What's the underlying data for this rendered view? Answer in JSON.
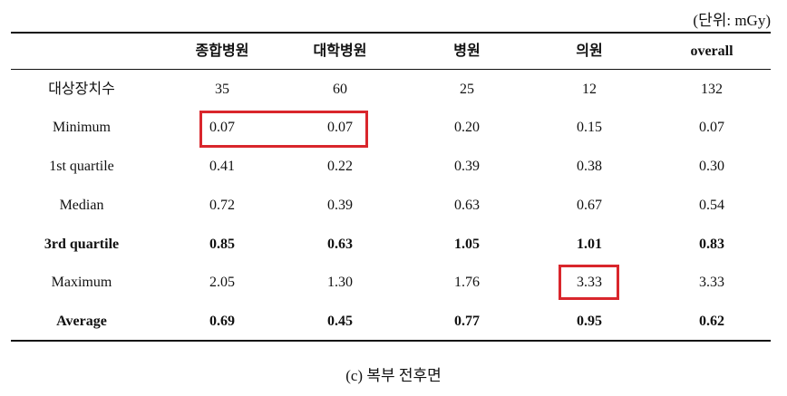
{
  "unit_note": "(단위: mGy)",
  "table": {
    "header": [
      "",
      "종합병원",
      "대학병원",
      "병원",
      "의원",
      "overall"
    ],
    "rows": [
      [
        "대상장치수",
        "35",
        "60",
        "25",
        "12",
        "132"
      ],
      [
        "Minimum",
        "0.07",
        "0.07",
        "0.20",
        "0.15",
        "0.07"
      ],
      [
        "1st quartile",
        "0.41",
        "0.22",
        "0.39",
        "0.38",
        "0.30"
      ],
      [
        "Median",
        "0.72",
        "0.39",
        "0.63",
        "0.67",
        "0.54"
      ],
      [
        "3rd quartile",
        "0.85",
        "0.63",
        "1.05",
        "1.01",
        "0.83"
      ],
      [
        "Maximum",
        "2.05",
        "1.30",
        "1.76",
        "3.33",
        "3.33"
      ],
      [
        "Average",
        "0.69",
        "0.45",
        "0.77",
        "0.95",
        "0.62"
      ]
    ]
  },
  "caption": "(c) 복부 전후면"
}
